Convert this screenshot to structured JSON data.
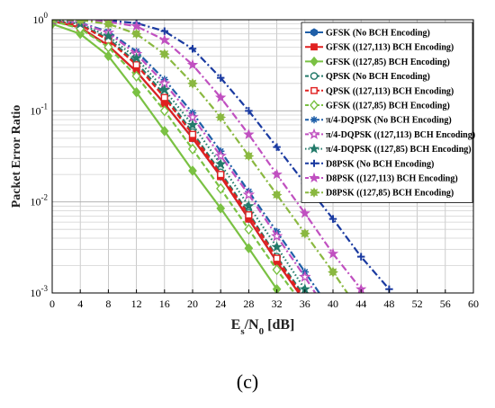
{
  "caption": "(c)",
  "colors": {
    "blue": "#1f5fa8",
    "red": "#e02020",
    "green": "#7ac143",
    "teal": "#237a6a",
    "purple": "#c050c0",
    "olive": "#8ab840",
    "navy": "#1a3aa0"
  },
  "chart_data": {
    "type": "line",
    "xlabel_main": "E",
    "xlabel_sub": "s",
    "xlabel_mid": "/N",
    "xlabel_sub2": "0",
    "xlabel_unit": " [dB]",
    "ylabel": "Packet Error Ratio",
    "xlim": [
      0,
      60
    ],
    "ylim": [
      0.001,
      1
    ],
    "yscale": "log",
    "grid": true,
    "legend_position": "top-right",
    "x_ticks": [
      0,
      4,
      8,
      12,
      16,
      20,
      24,
      28,
      32,
      36,
      40,
      44,
      48,
      52,
      56,
      60
    ],
    "y_ticks": [
      {
        "value": 1,
        "base": "10",
        "exp": "0"
      },
      {
        "value": 0.1,
        "base": "10",
        "exp": "-1"
      },
      {
        "value": 0.01,
        "base": "10",
        "exp": "-2"
      },
      {
        "value": 0.001,
        "base": "10",
        "exp": "-3"
      }
    ],
    "series": [
      {
        "name": "GFSK (No BCH Encoding)",
        "color": "#1f5fa8",
        "dash": "solid",
        "marker": "hexagon",
        "x": [
          0,
          4,
          8,
          12,
          16,
          20,
          24,
          28,
          32,
          36
        ],
        "y": [
          0.97,
          0.82,
          0.52,
          0.27,
          0.12,
          0.05,
          0.019,
          0.0065,
          0.0022,
          0.0008
        ]
      },
      {
        "name": "GFSK ((127,113) BCH Encoding)",
        "color": "#e02020",
        "dash": "solid",
        "marker": "square",
        "x": [
          0,
          4,
          8,
          12,
          16,
          20,
          24,
          28,
          32,
          36
        ],
        "y": [
          0.97,
          0.82,
          0.52,
          0.27,
          0.12,
          0.05,
          0.019,
          0.0065,
          0.0022,
          0.0008
        ]
      },
      {
        "name": "GFSK ((127,85) BCH Encoding)",
        "color": "#7ac143",
        "dash": "solid",
        "marker": "diamond",
        "x": [
          0,
          4,
          8,
          12,
          16,
          20,
          24,
          28,
          32
        ],
        "y": [
          0.9,
          0.7,
          0.4,
          0.16,
          0.06,
          0.022,
          0.0085,
          0.0031,
          0.0011
        ]
      },
      {
        "name": "QPSK (No BCH Encoding)",
        "color": "#237a6a",
        "dash": "dash",
        "marker": "circle-open",
        "x": [
          0,
          4,
          8,
          12,
          16,
          20,
          24,
          28,
          32,
          36
        ],
        "y": [
          0.98,
          0.88,
          0.62,
          0.34,
          0.15,
          0.058,
          0.021,
          0.0075,
          0.0025,
          0.0009
        ]
      },
      {
        "name": "QPSK ((127,113) BCH Encoding)",
        "color": "#e02020",
        "dash": "dash",
        "marker": "square-open",
        "x": [
          0,
          4,
          8,
          12,
          16,
          20,
          24,
          28,
          32,
          36
        ],
        "y": [
          0.98,
          0.87,
          0.6,
          0.32,
          0.14,
          0.055,
          0.02,
          0.0072,
          0.0024,
          0.00085
        ]
      },
      {
        "name": "GFSK ((127,85) BCH Encoding)",
        "color": "#7ac143",
        "dash": "dash",
        "marker": "diamond-open",
        "x": [
          0,
          4,
          8,
          12,
          16,
          20,
          24,
          28,
          32,
          36
        ],
        "y": [
          0.97,
          0.8,
          0.5,
          0.24,
          0.1,
          0.038,
          0.014,
          0.005,
          0.0018,
          0.0007
        ]
      },
      {
        "name": "π/4-DQPSK (No BCH Encoding)",
        "color": "#1f5fa8",
        "dash": "dashdot",
        "marker": "asterisk",
        "x": [
          0,
          4,
          8,
          12,
          16,
          20,
          24,
          28,
          32,
          36,
          40
        ],
        "y": [
          0.99,
          0.93,
          0.74,
          0.45,
          0.22,
          0.095,
          0.036,
          0.013,
          0.0047,
          0.0017,
          0.0006
        ]
      },
      {
        "name": "π/4-DQPSK ((127,113) BCH Encoding)",
        "color": "#c050c0",
        "dash": "dashdot",
        "marker": "star-open",
        "x": [
          0,
          4,
          8,
          12,
          16,
          20,
          24,
          28,
          32,
          36,
          40
        ],
        "y": [
          0.99,
          0.92,
          0.72,
          0.42,
          0.2,
          0.085,
          0.032,
          0.012,
          0.0042,
          0.0015,
          0.0005
        ]
      },
      {
        "name": "π/4-DQPSK ((127,85) BCH Encoding)",
        "color": "#237a6a",
        "dash": "dot",
        "marker": "star",
        "x": [
          0,
          4,
          8,
          12,
          16,
          20,
          24,
          28,
          32,
          36,
          40
        ],
        "y": [
          0.99,
          0.9,
          0.66,
          0.38,
          0.17,
          0.07,
          0.026,
          0.009,
          0.0032,
          0.0011,
          0.0004
        ]
      },
      {
        "name": "D8PSK (No BCH Encoding)",
        "color": "#1a3aa0",
        "dash": "dashdot",
        "marker": "plus",
        "x": [
          0,
          4,
          8,
          12,
          16,
          20,
          24,
          28,
          32,
          36,
          40,
          44,
          48
        ],
        "y": [
          1.0,
          1.0,
          0.98,
          0.92,
          0.75,
          0.48,
          0.23,
          0.1,
          0.04,
          0.016,
          0.0065,
          0.0025,
          0.0011
        ]
      },
      {
        "name": "D8PSK ((127,113) BCH Encoding)",
        "color": "#c050c0",
        "dash": "dashdot",
        "marker": "star",
        "x": [
          0,
          4,
          8,
          12,
          16,
          20,
          24,
          28,
          32,
          36,
          40,
          44
        ],
        "y": [
          1.0,
          0.99,
          0.95,
          0.85,
          0.6,
          0.32,
          0.14,
          0.055,
          0.02,
          0.0075,
          0.0027,
          0.0011
        ]
      },
      {
        "name": "D8PSK ((127,85) BCH Encoding)",
        "color": "#8ab840",
        "dash": "dashdot",
        "marker": "flower",
        "x": [
          0,
          4,
          8,
          12,
          16,
          20,
          24,
          28,
          32,
          36,
          40,
          44
        ],
        "y": [
          1.0,
          0.99,
          0.9,
          0.7,
          0.42,
          0.2,
          0.085,
          0.032,
          0.012,
          0.0045,
          0.0017,
          0.0006
        ]
      }
    ]
  }
}
